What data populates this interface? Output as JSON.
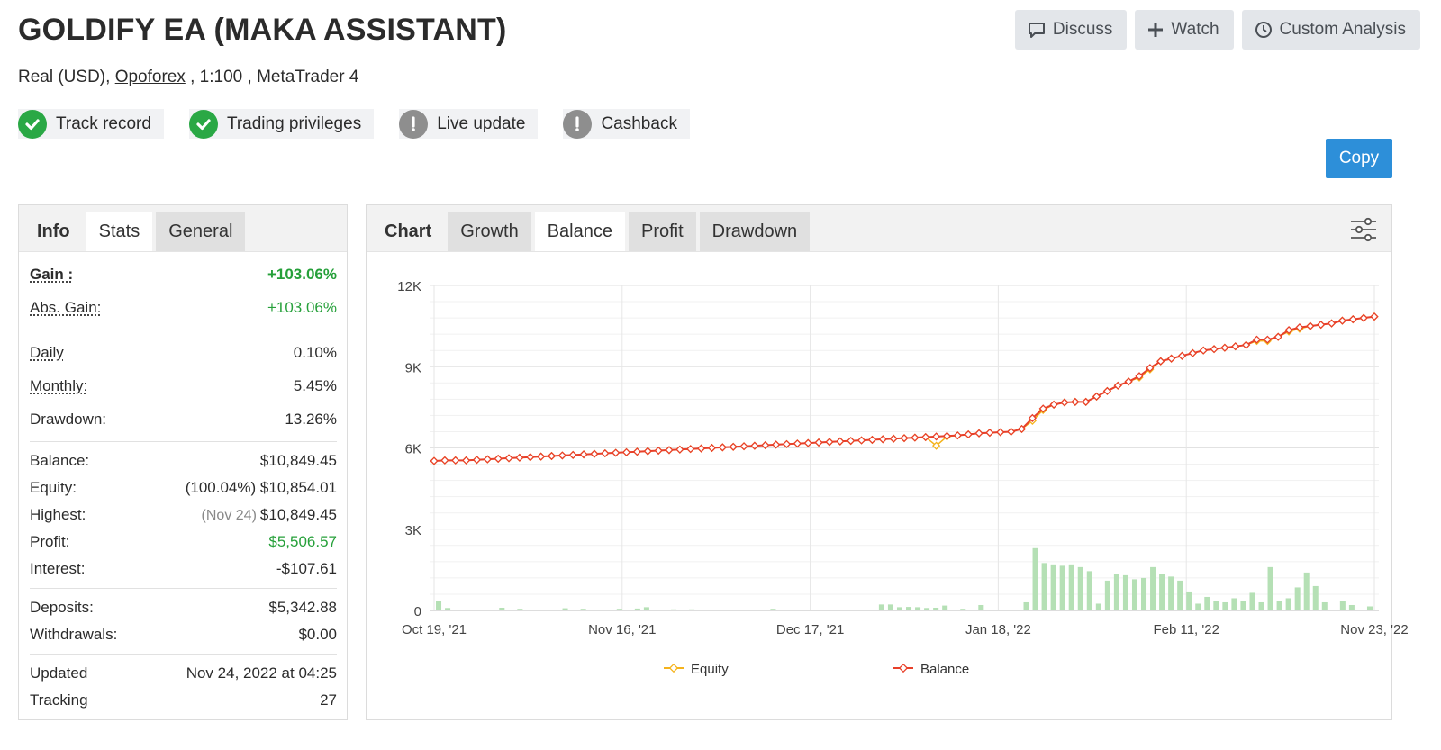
{
  "header": {
    "title": "GOLDIFY EA (MAKA ASSISTANT)",
    "account_type": "Real (USD),",
    "broker": "Opoforex",
    "leverage": ", 1:100 ,",
    "platform": "MetaTrader 4"
  },
  "actions": {
    "discuss": "Discuss",
    "watch": "Watch",
    "custom_analysis": "Custom Analysis",
    "copy": "Copy"
  },
  "badges": [
    {
      "label": "Track record",
      "status": "verified",
      "color": "#2aa845"
    },
    {
      "label": "Trading privileges",
      "status": "verified",
      "color": "#2aa845"
    },
    {
      "label": "Live update",
      "status": "warning",
      "color": "#8e8e8e"
    },
    {
      "label": "Cashback",
      "status": "warning",
      "color": "#8e8e8e"
    }
  ],
  "left_tabs": {
    "info": "Info",
    "stats": "Stats",
    "general": "General"
  },
  "stats": {
    "gain_label": "Gain :",
    "gain": "+103.06%",
    "abs_gain_label": "Abs. Gain:",
    "abs_gain": "+103.06%",
    "daily_label": "Daily",
    "daily": "0.10%",
    "monthly_label": "Monthly:",
    "monthly": "5.45%",
    "drawdown_label": "Drawdown:",
    "drawdown": "13.26%",
    "balance_label": "Balance:",
    "balance": "$10,849.45",
    "equity_label": "Equity:",
    "equity_pct": "(100.04%)",
    "equity": "$10,854.01",
    "highest_label": "Highest:",
    "highest_date": "(Nov 24)",
    "highest": "$10,849.45",
    "profit_label": "Profit:",
    "profit": "$5,506.57",
    "interest_label": "Interest:",
    "interest": "-$107.61",
    "deposits_label": "Deposits:",
    "deposits": "$5,342.88",
    "withdrawals_label": "Withdrawals:",
    "withdrawals": "$0.00",
    "updated_label": "Updated",
    "updated": "Nov 24, 2022 at 04:25",
    "tracking_label": "Tracking",
    "tracking": "27"
  },
  "chart_tabs": {
    "chart": "Chart",
    "growth": "Growth",
    "balance": "Balance",
    "profit": "Profit",
    "drawdown": "Drawdown"
  },
  "colors": {
    "accent": "#2d8fd9",
    "balance_line": "#e8402a",
    "equity_line": "#f5b31c",
    "volume_bar": "#b5e0b5",
    "positive": "#26a03a"
  },
  "chart_data": {
    "type": "line",
    "title": "",
    "xlabel": "",
    "ylabel": "",
    "ylim": [
      0,
      12000
    ],
    "yticks": [
      "0",
      "3K",
      "6K",
      "9K",
      "12K"
    ],
    "xticks": [
      "Oct 19, '21",
      "Nov 16, '21",
      "Dec 17, '21",
      "Jan 18, '22",
      "Feb 11, '22",
      "Nov 23, '22"
    ],
    "grid": true,
    "legend": "bottom-center",
    "series": [
      {
        "name": "Equity",
        "values": [
          5520,
          5540,
          5540,
          5540,
          5560,
          5580,
          5600,
          5620,
          5640,
          5660,
          5680,
          5700,
          5720,
          5740,
          5760,
          5780,
          5800,
          5820,
          5840,
          5860,
          5880,
          5900,
          5920,
          5940,
          5960,
          5980,
          6000,
          6020,
          6040,
          6060,
          6080,
          6100,
          6120,
          6140,
          6160,
          6180,
          6200,
          6220,
          6240,
          6260,
          6280,
          6300,
          6320,
          6340,
          6360,
          6380,
          6400,
          6080,
          6420,
          6460,
          6500,
          6540,
          6560,
          6580,
          6600,
          6700,
          7000,
          7400,
          7600,
          7680,
          7700,
          7700,
          7900,
          8100,
          8300,
          8450,
          8600,
          8900,
          9200,
          9300,
          9400,
          9500,
          9600,
          9650,
          9700,
          9750,
          9800,
          9950,
          9950,
          10100,
          10300,
          10400,
          10500,
          10550,
          10600,
          10700,
          10750,
          10800,
          10850
        ]
      },
      {
        "name": "Balance",
        "values": [
          5520,
          5540,
          5540,
          5540,
          5560,
          5580,
          5600,
          5620,
          5640,
          5660,
          5680,
          5700,
          5720,
          5740,
          5760,
          5780,
          5800,
          5820,
          5840,
          5860,
          5880,
          5900,
          5920,
          5940,
          5960,
          5980,
          6000,
          6020,
          6040,
          6060,
          6080,
          6100,
          6120,
          6140,
          6160,
          6180,
          6200,
          6220,
          6240,
          6260,
          6280,
          6300,
          6320,
          6340,
          6360,
          6380,
          6400,
          6420,
          6440,
          6460,
          6500,
          6540,
          6560,
          6580,
          6600,
          6700,
          7100,
          7450,
          7600,
          7680,
          7700,
          7700,
          7900,
          8100,
          8300,
          8450,
          8650,
          8950,
          9200,
          9300,
          9400,
          9500,
          9600,
          9650,
          9700,
          9750,
          9800,
          10000,
          10000,
          10100,
          10350,
          10450,
          10500,
          10550,
          10600,
          10700,
          10750,
          10800,
          10850
        ]
      }
    ],
    "volume_bars": [
      350,
      90,
      0,
      0,
      0,
      0,
      0,
      100,
      0,
      60,
      0,
      0,
      0,
      0,
      80,
      0,
      60,
      0,
      0,
      0,
      60,
      0,
      70,
      120,
      0,
      0,
      40,
      0,
      40,
      0,
      0,
      0,
      0,
      0,
      0,
      0,
      0,
      60,
      0,
      0,
      0,
      0,
      0,
      0,
      0,
      0,
      0,
      0,
      0,
      220,
      220,
      120,
      130,
      120,
      90,
      100,
      180,
      0,
      60,
      0,
      200,
      0,
      0,
      0,
      0,
      300,
      2300,
      1750,
      1700,
      1650,
      1700,
      1600,
      1450,
      250,
      1100,
      1350,
      1300,
      1150,
      1200,
      1600,
      1350,
      1250,
      1100,
      700,
      250,
      500,
      350,
      300,
      450,
      350,
      650,
      300,
      1600,
      350,
      450,
      850,
      1400,
      900,
      300,
      0,
      350,
      200,
      0,
      150
    ]
  }
}
